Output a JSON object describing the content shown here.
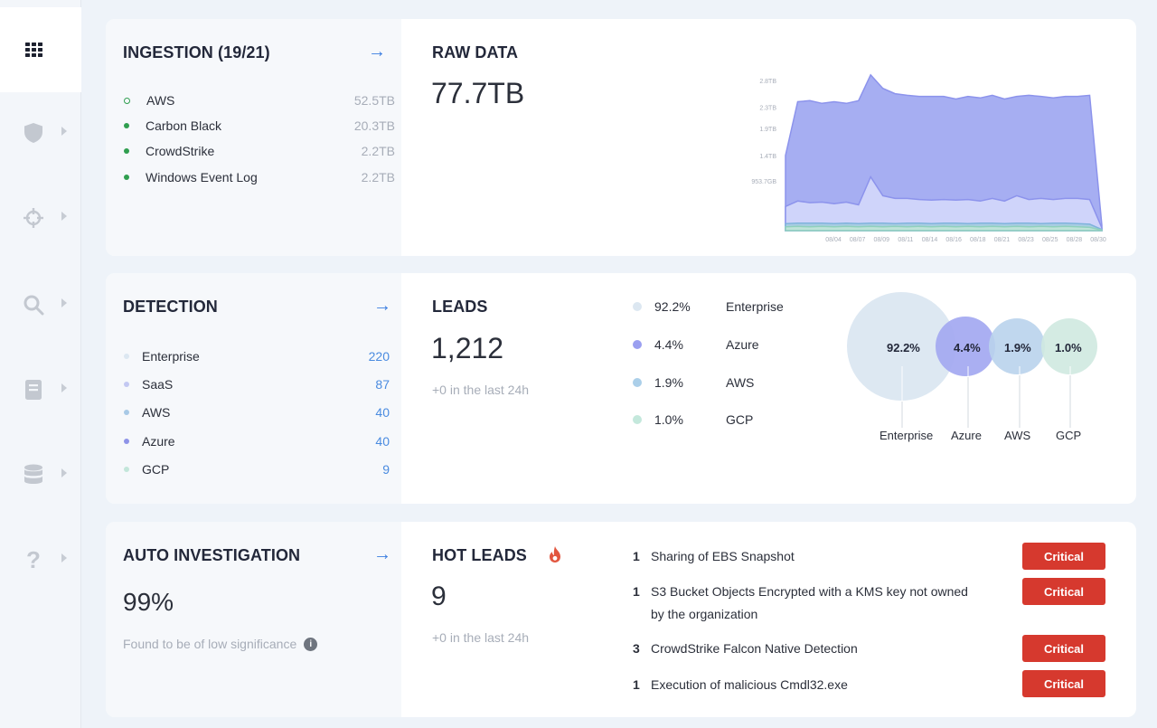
{
  "sidebar": {
    "items": [
      {
        "icon": "grid-icon",
        "active": true
      },
      {
        "icon": "shield-icon"
      },
      {
        "icon": "crosshair-icon"
      },
      {
        "icon": "search-icon"
      },
      {
        "icon": "book-icon"
      },
      {
        "icon": "database-icon"
      },
      {
        "icon": "help-icon"
      }
    ]
  },
  "ingestion": {
    "title": "INGESTION (19/21)",
    "items": [
      {
        "label": "AWS",
        "value": "52.5TB",
        "status": "hollow"
      },
      {
        "label": "Carbon Black",
        "value": "20.3TB",
        "status": "active"
      },
      {
        "label": "CrowdStrike",
        "value": "2.2TB",
        "status": "active"
      },
      {
        "label": "Windows Event Log",
        "value": "2.2TB",
        "status": "active"
      }
    ]
  },
  "raw_data": {
    "title": "RAW DATA",
    "value": "77.7TB"
  },
  "chart_data": {
    "type": "area",
    "y_ticks": [
      "2.8TB",
      "2.3TB",
      "1.9TB",
      "1.4TB",
      "953.7GB"
    ],
    "x_ticks": [
      "08/04",
      "08/07",
      "08/09",
      "08/11",
      "08/14",
      "08/16",
      "08/18",
      "08/21",
      "08/23",
      "08/25",
      "08/28",
      "08/30"
    ],
    "series": [
      {
        "color": "#a6aef2",
        "values": [
          1.4,
          2.4,
          2.42,
          2.37,
          2.4,
          2.37,
          2.42,
          2.9,
          2.65,
          2.55,
          2.52,
          2.5,
          2.5,
          2.5,
          2.45,
          2.5,
          2.47,
          2.52,
          2.45,
          2.5,
          2.52,
          2.5,
          2.47,
          2.5,
          2.5,
          2.52,
          0.1
        ]
      },
      {
        "color": "#cfd4fa",
        "values": [
          0.45,
          0.55,
          0.52,
          0.53,
          0.5,
          0.53,
          0.48,
          1.0,
          0.65,
          0.6,
          0.6,
          0.58,
          0.57,
          0.58,
          0.57,
          0.58,
          0.55,
          0.6,
          0.55,
          0.65,
          0.58,
          0.6,
          0.58,
          0.6,
          0.6,
          0.58,
          0.05
        ]
      },
      {
        "color": "#a9cde3",
        "values": [
          0.13,
          0.14,
          0.14,
          0.14,
          0.13,
          0.14,
          0.13,
          0.14,
          0.14,
          0.13,
          0.14,
          0.14,
          0.13,
          0.14,
          0.14,
          0.13,
          0.14,
          0.14,
          0.13,
          0.14,
          0.14,
          0.13,
          0.14,
          0.14,
          0.13,
          0.12,
          0.02
        ]
      },
      {
        "color": "#bfe3d9",
        "values": [
          0.07,
          0.08,
          0.07,
          0.08,
          0.07,
          0.08,
          0.07,
          0.08,
          0.07,
          0.08,
          0.07,
          0.08,
          0.07,
          0.08,
          0.07,
          0.08,
          0.07,
          0.08,
          0.07,
          0.08,
          0.07,
          0.08,
          0.07,
          0.08,
          0.07,
          0.06,
          0.01
        ]
      }
    ]
  },
  "detection": {
    "title": "DETECTION",
    "items": [
      {
        "label": "Enterprise",
        "value": "220",
        "color": "#dce7f1"
      },
      {
        "label": "SaaS",
        "value": "87",
        "color": "#c3c8f2"
      },
      {
        "label": "AWS",
        "value": "40",
        "color": "#a8c9e6"
      },
      {
        "label": "Azure",
        "value": "40",
        "color": "#8e93e8"
      },
      {
        "label": "GCP",
        "value": "9",
        "color": "#c3e6da"
      }
    ]
  },
  "leads": {
    "title": "LEADS",
    "value": "1,212",
    "delta": "+0 in the last 24h",
    "legend": [
      {
        "pct": "92.2%",
        "label": "Enterprise",
        "color": "#dce7f1"
      },
      {
        "pct": "4.4%",
        "label": "Azure",
        "color": "#9a9ff0"
      },
      {
        "pct": "1.9%",
        "label": "AWS",
        "color": "#abcfe9"
      },
      {
        "pct": "1.0%",
        "label": "GCP",
        "color": "#c4e8dc"
      }
    ],
    "bubbles": [
      {
        "pct": "92.2%",
        "label": "Enterprise",
        "color": "#dde8f2"
      },
      {
        "pct": "4.4%",
        "label": "Azure",
        "color": "#a3a8f1"
      },
      {
        "pct": "1.9%",
        "label": "AWS",
        "color": "#b9d3ec"
      },
      {
        "pct": "1.0%",
        "label": "GCP",
        "color": "#cfe9e0"
      }
    ]
  },
  "auto_investigation": {
    "title": "AUTO INVESTIGATION",
    "value": "99%",
    "note": "Found to be of low significance"
  },
  "hot_leads": {
    "title": "HOT LEADS",
    "value": "9",
    "delta": "+0 in the last 24h",
    "items": [
      {
        "count": "1",
        "text": "Sharing of EBS Snapshot",
        "severity": "Critical"
      },
      {
        "count": "1",
        "text": "S3 Bucket Objects Encrypted with a KMS key not owned by the organization",
        "severity": "Critical"
      },
      {
        "count": "3",
        "text": "CrowdStrike Falcon Native Detection",
        "severity": "Critical"
      },
      {
        "count": "1",
        "text": "Execution of malicious Cmdl32.exe",
        "severity": "Critical"
      }
    ]
  },
  "colors": {
    "accent": "#3a7de0",
    "critical": "#d6392e",
    "ingest_green": "#2f9e4f"
  }
}
